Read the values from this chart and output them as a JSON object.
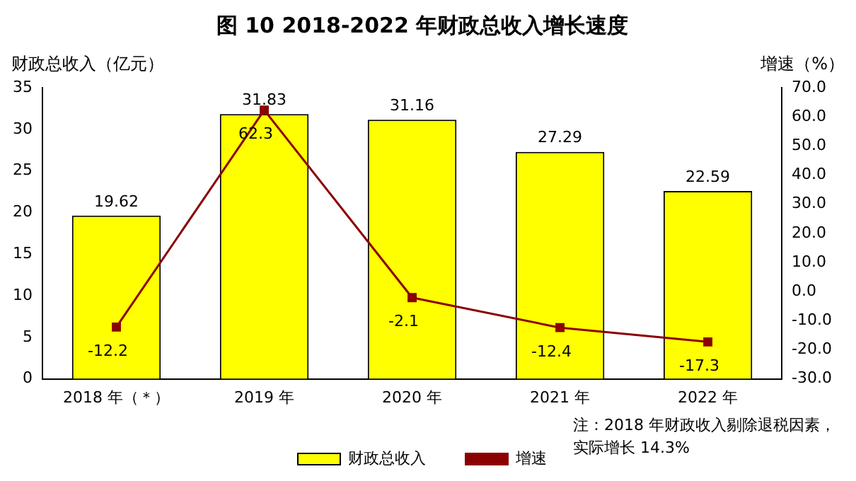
{
  "chart_data": {
    "type": "bar",
    "title": "图 10 2018-2022 年财政总收入增长速度",
    "ylabel": "财政总收入（亿元）",
    "y2label": "增速（%）",
    "categories": [
      "2018 年（＊）",
      "2019 年",
      "2020 年",
      "2021 年",
      "2022 年"
    ],
    "series": [
      {
        "name": "财政总收入",
        "color": "#ffff00",
        "values": [
          19.62,
          31.83,
          31.16,
          27.29,
          22.59
        ]
      },
      {
        "name": "增速",
        "type": "line",
        "axis": "y2",
        "color": "#8b0000",
        "marker": "square",
        "values": [
          -12.2,
          62.3,
          -2.1,
          -12.4,
          -17.3
        ]
      }
    ],
    "ylim": [
      0,
      35
    ],
    "yticks": [
      0,
      5,
      10,
      15,
      20,
      25,
      30,
      35
    ],
    "y2lim": [
      -30,
      70
    ],
    "y2ticks": [
      {
        "value": -30,
        "label": "-30.0"
      },
      {
        "value": -20,
        "label": "-20.0"
      },
      {
        "value": -10,
        "label": "-10.0"
      },
      {
        "value": 0,
        "label": "0.0"
      },
      {
        "value": 10,
        "label": "10.0"
      },
      {
        "value": 20,
        "label": "20.0"
      },
      {
        "value": 30,
        "label": "30.0"
      },
      {
        "value": 40,
        "label": "40.0"
      },
      {
        "value": 50,
        "label": "50.0"
      },
      {
        "value": 60,
        "label": "60.0"
      },
      {
        "value": 70,
        "label": "70.0"
      }
    ],
    "data_labels": true,
    "grid": false,
    "legend": "bottom",
    "annotations": [
      "注：2018 年财政收入剔除退税因素，实际增长 14.3%"
    ]
  }
}
